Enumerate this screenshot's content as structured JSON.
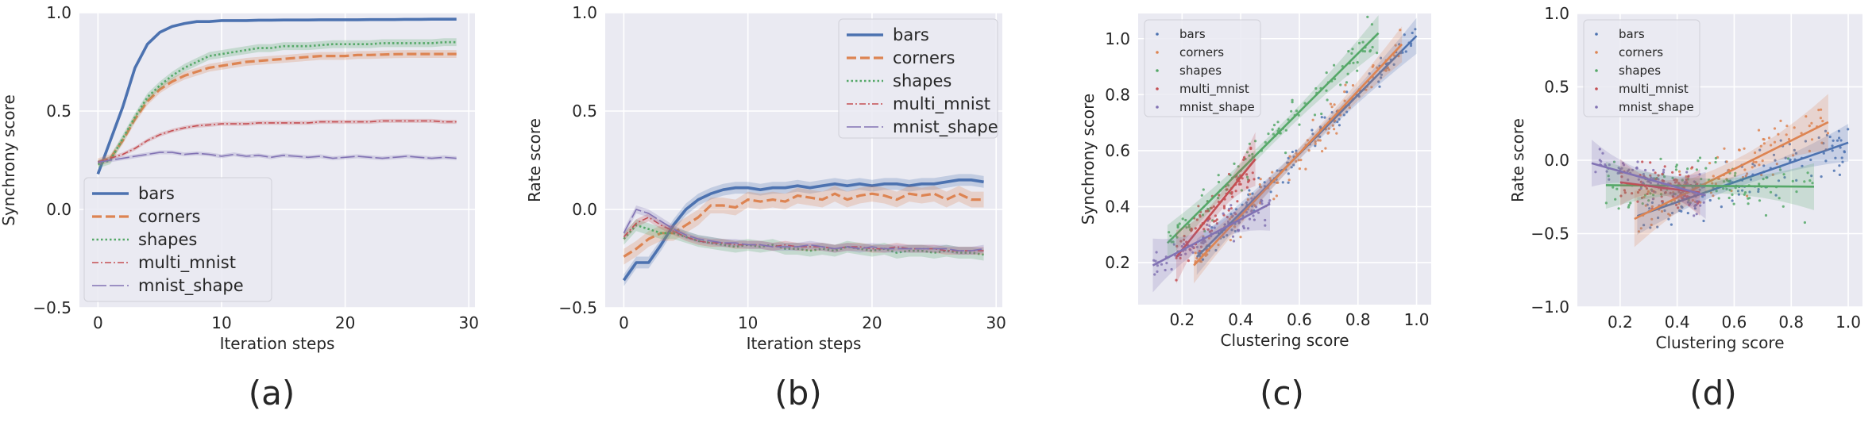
{
  "chart_data": [
    {
      "id": "a",
      "type": "line",
      "panel_label": "(a)",
      "xlabel": "Iteration steps",
      "ylabel": "Synchrony score",
      "xlim": [
        -1.5,
        30.5
      ],
      "ylim": [
        -0.5,
        1.0
      ],
      "xticks": [
        0,
        10,
        20,
        30
      ],
      "xtick_labels": [
        "0",
        "10",
        "20",
        "30"
      ],
      "yticks": [
        -0.5,
        0.0,
        0.5,
        1.0
      ],
      "ytick_labels": [
        "−0.5",
        "0.0",
        "0.5",
        "1.0"
      ],
      "legend_position": "lower-left",
      "x": [
        0,
        1,
        2,
        3,
        4,
        5,
        6,
        7,
        8,
        9,
        10,
        11,
        12,
        13,
        14,
        15,
        16,
        17,
        18,
        19,
        20,
        21,
        22,
        23,
        24,
        25,
        26,
        27,
        28,
        29
      ],
      "series": [
        {
          "name": "bars",
          "color": "#4c72b0",
          "dash": "solid",
          "band": 0.005,
          "values": [
            0.18,
            0.35,
            0.52,
            0.72,
            0.84,
            0.9,
            0.93,
            0.945,
            0.955,
            0.955,
            0.96,
            0.96,
            0.96,
            0.962,
            0.962,
            0.963,
            0.963,
            0.963,
            0.964,
            0.964,
            0.964,
            0.964,
            0.965,
            0.965,
            0.965,
            0.966,
            0.966,
            0.967,
            0.967,
            0.967
          ]
        },
        {
          "name": "corners",
          "color": "#dd8452",
          "dash": "dashed",
          "band": 0.02,
          "values": [
            0.24,
            0.26,
            0.35,
            0.46,
            0.55,
            0.61,
            0.65,
            0.68,
            0.7,
            0.72,
            0.73,
            0.74,
            0.75,
            0.755,
            0.76,
            0.765,
            0.77,
            0.775,
            0.78,
            0.78,
            0.78,
            0.785,
            0.785,
            0.787,
            0.789,
            0.79,
            0.79,
            0.79,
            0.79,
            0.79
          ]
        },
        {
          "name": "shapes",
          "color": "#55a868",
          "dash": "dotted",
          "band": 0.02,
          "values": [
            0.23,
            0.25,
            0.36,
            0.47,
            0.57,
            0.63,
            0.68,
            0.72,
            0.75,
            0.78,
            0.79,
            0.8,
            0.81,
            0.82,
            0.82,
            0.83,
            0.83,
            0.83,
            0.835,
            0.84,
            0.84,
            0.84,
            0.84,
            0.845,
            0.845,
            0.845,
            0.845,
            0.845,
            0.85,
            0.85
          ]
        },
        {
          "name": "multi_mnist",
          "color": "#c44e52",
          "dash": "dashdot",
          "band": 0.01,
          "values": [
            0.24,
            0.26,
            0.28,
            0.31,
            0.35,
            0.38,
            0.4,
            0.415,
            0.425,
            0.43,
            0.435,
            0.435,
            0.435,
            0.44,
            0.44,
            0.44,
            0.44,
            0.44,
            0.445,
            0.445,
            0.445,
            0.445,
            0.445,
            0.45,
            0.45,
            0.45,
            0.45,
            0.45,
            0.445,
            0.445
          ]
        },
        {
          "name": "mnist_shape",
          "color": "#8172b3",
          "dash": "longdash",
          "band": 0.01,
          "values": [
            0.24,
            0.25,
            0.26,
            0.27,
            0.28,
            0.29,
            0.29,
            0.28,
            0.285,
            0.28,
            0.27,
            0.28,
            0.27,
            0.275,
            0.265,
            0.275,
            0.27,
            0.265,
            0.27,
            0.26,
            0.265,
            0.27,
            0.265,
            0.26,
            0.265,
            0.27,
            0.265,
            0.26,
            0.265,
            0.26
          ]
        }
      ]
    },
    {
      "id": "b",
      "type": "line",
      "panel_label": "(b)",
      "xlabel": "Iteration steps",
      "ylabel": "Rate score",
      "xlim": [
        -1.5,
        30.5
      ],
      "ylim": [
        -0.5,
        1.0
      ],
      "xticks": [
        0,
        10,
        20,
        30
      ],
      "xtick_labels": [
        "0",
        "10",
        "20",
        "30"
      ],
      "yticks": [
        -0.5,
        0.0,
        0.5,
        1.0
      ],
      "ytick_labels": [
        "−0.5",
        "0.0",
        "0.5",
        "1.0"
      ],
      "legend_position": "top-right",
      "x": [
        0,
        1,
        2,
        3,
        4,
        5,
        6,
        7,
        8,
        9,
        10,
        11,
        12,
        13,
        14,
        15,
        16,
        17,
        18,
        19,
        20,
        21,
        22,
        23,
        24,
        25,
        26,
        27,
        28,
        29
      ],
      "series": [
        {
          "name": "bars",
          "color": "#4c72b0",
          "dash": "solid",
          "band": 0.03,
          "values": [
            -0.36,
            -0.27,
            -0.27,
            -0.18,
            -0.08,
            0.0,
            0.05,
            0.08,
            0.1,
            0.11,
            0.11,
            0.1,
            0.11,
            0.11,
            0.12,
            0.11,
            0.12,
            0.13,
            0.12,
            0.13,
            0.12,
            0.13,
            0.13,
            0.12,
            0.13,
            0.13,
            0.14,
            0.15,
            0.15,
            0.14
          ]
        },
        {
          "name": "corners",
          "color": "#dd8452",
          "dash": "dashed",
          "band": 0.04,
          "values": [
            -0.24,
            -0.2,
            -0.15,
            -0.12,
            -0.12,
            -0.08,
            -0.04,
            0.02,
            0.02,
            0.01,
            0.05,
            0.04,
            0.05,
            0.04,
            0.07,
            0.06,
            0.05,
            0.08,
            0.05,
            0.07,
            0.08,
            0.07,
            0.05,
            0.08,
            0.07,
            0.08,
            0.05,
            0.08,
            0.05,
            0.05
          ]
        },
        {
          "name": "shapes",
          "color": "#55a868",
          "dash": "dotted",
          "band": 0.03,
          "values": [
            -0.15,
            -0.08,
            -0.1,
            -0.12,
            -0.12,
            -0.14,
            -0.16,
            -0.17,
            -0.18,
            -0.19,
            -0.18,
            -0.19,
            -0.18,
            -0.2,
            -0.2,
            -0.21,
            -0.2,
            -0.21,
            -0.19,
            -0.2,
            -0.21,
            -0.2,
            -0.22,
            -0.21,
            -0.21,
            -0.22,
            -0.21,
            -0.22,
            -0.22,
            -0.23
          ]
        },
        {
          "name": "multi_mnist",
          "color": "#c44e52",
          "dash": "dashdot",
          "band": 0.02,
          "values": [
            -0.14,
            -0.07,
            -0.04,
            -0.08,
            -0.11,
            -0.14,
            -0.16,
            -0.17,
            -0.17,
            -0.18,
            -0.18,
            -0.18,
            -0.19,
            -0.18,
            -0.19,
            -0.19,
            -0.19,
            -0.2,
            -0.19,
            -0.19,
            -0.2,
            -0.2,
            -0.19,
            -0.2,
            -0.2,
            -0.2,
            -0.21,
            -0.21,
            -0.21,
            -0.21
          ]
        },
        {
          "name": "mnist_shape",
          "color": "#8172b3",
          "dash": "longdash",
          "band": 0.02,
          "values": [
            -0.12,
            0.0,
            -0.02,
            -0.06,
            -0.1,
            -0.13,
            -0.15,
            -0.16,
            -0.17,
            -0.17,
            -0.18,
            -0.18,
            -0.19,
            -0.19,
            -0.19,
            -0.18,
            -0.19,
            -0.2,
            -0.19,
            -0.2,
            -0.19,
            -0.2,
            -0.2,
            -0.2,
            -0.2,
            -0.2,
            -0.2,
            -0.21,
            -0.21,
            -0.2
          ]
        }
      ]
    },
    {
      "id": "c",
      "type": "scatter",
      "panel_label": "(c)",
      "xlabel": "Clustering score",
      "ylabel": "Synchrony score",
      "xlim": [
        0.05,
        1.05
      ],
      "ylim": [
        0.05,
        1.09
      ],
      "xticks": [
        0.2,
        0.4,
        0.6,
        0.8,
        1.0
      ],
      "xtick_labels": [
        "0.2",
        "0.4",
        "0.6",
        "0.8",
        "1.0"
      ],
      "yticks": [
        0.2,
        0.4,
        0.6,
        0.8,
        1.0
      ],
      "ytick_labels": [
        "0.2",
        "0.4",
        "0.6",
        "0.8",
        "1.0"
      ],
      "legend_position": "top-left",
      "seed": 7,
      "series": [
        {
          "name": "bars",
          "color": "#4c72b0",
          "fit": [
            [
              0.25,
              0.22
            ],
            [
              1.0,
              1.01
            ]
          ],
          "n": 120,
          "spread": 0.04,
          "band": 0.02
        },
        {
          "name": "corners",
          "color": "#dd8452",
          "fit": [
            [
              0.24,
              0.19
            ],
            [
              0.95,
              0.98
            ]
          ],
          "n": 110,
          "spread": 0.05,
          "band": 0.02
        },
        {
          "name": "shapes",
          "color": "#55a868",
          "fit": [
            [
              0.15,
              0.27
            ],
            [
              0.87,
              1.02
            ]
          ],
          "n": 110,
          "spread": 0.06,
          "band": 0.02
        },
        {
          "name": "multi_mnist",
          "color": "#c44e52",
          "fit": [
            [
              0.18,
              0.22
            ],
            [
              0.45,
              0.57
            ]
          ],
          "n": 90,
          "spread": 0.07,
          "band": 0.03
        },
        {
          "name": "mnist_shape",
          "color": "#8172b3",
          "fit": [
            [
              0.1,
              0.19
            ],
            [
              0.5,
              0.41
            ]
          ],
          "n": 80,
          "spread": 0.05,
          "band": 0.03
        }
      ]
    },
    {
      "id": "d",
      "type": "scatter",
      "panel_label": "(d)",
      "xlabel": "Clustering score",
      "ylabel": "Rate score",
      "xlim": [
        0.05,
        1.05
      ],
      "ylim": [
        -1.0,
        1.0
      ],
      "xticks": [
        0.2,
        0.4,
        0.6,
        0.8,
        1.0
      ],
      "xtick_labels": [
        "0.2",
        "0.4",
        "0.6",
        "0.8",
        "1.0"
      ],
      "yticks": [
        -1.0,
        -0.5,
        0.0,
        0.5,
        1.0
      ],
      "ytick_labels": [
        "−1.0",
        "−0.5",
        "0.0",
        "0.5",
        "1.0"
      ],
      "legend_position": "top-left",
      "seed": 13,
      "series": [
        {
          "name": "bars",
          "color": "#4c72b0",
          "fit": [
            [
              0.26,
              -0.38
            ],
            [
              1.0,
              0.12
            ]
          ],
          "n": 110,
          "spread": 0.12,
          "band": 0.04
        },
        {
          "name": "corners",
          "color": "#dd8452",
          "fit": [
            [
              0.25,
              -0.4
            ],
            [
              0.93,
              0.26
            ]
          ],
          "n": 100,
          "spread": 0.14,
          "band": 0.06
        },
        {
          "name": "shapes",
          "color": "#55a868",
          "fit": [
            [
              0.15,
              -0.17
            ],
            [
              0.88,
              -0.18
            ]
          ],
          "n": 110,
          "spread": 0.13,
          "band": 0.05
        },
        {
          "name": "multi_mnist",
          "color": "#c44e52",
          "fit": [
            [
              0.2,
              -0.15
            ],
            [
              0.48,
              -0.22
            ]
          ],
          "n": 80,
          "spread": 0.1,
          "band": 0.05
        },
        {
          "name": "mnist_shape",
          "color": "#8172b3",
          "fit": [
            [
              0.1,
              -0.02
            ],
            [
              0.5,
              -0.24
            ]
          ],
          "n": 80,
          "spread": 0.1,
          "band": 0.05
        }
      ]
    }
  ]
}
